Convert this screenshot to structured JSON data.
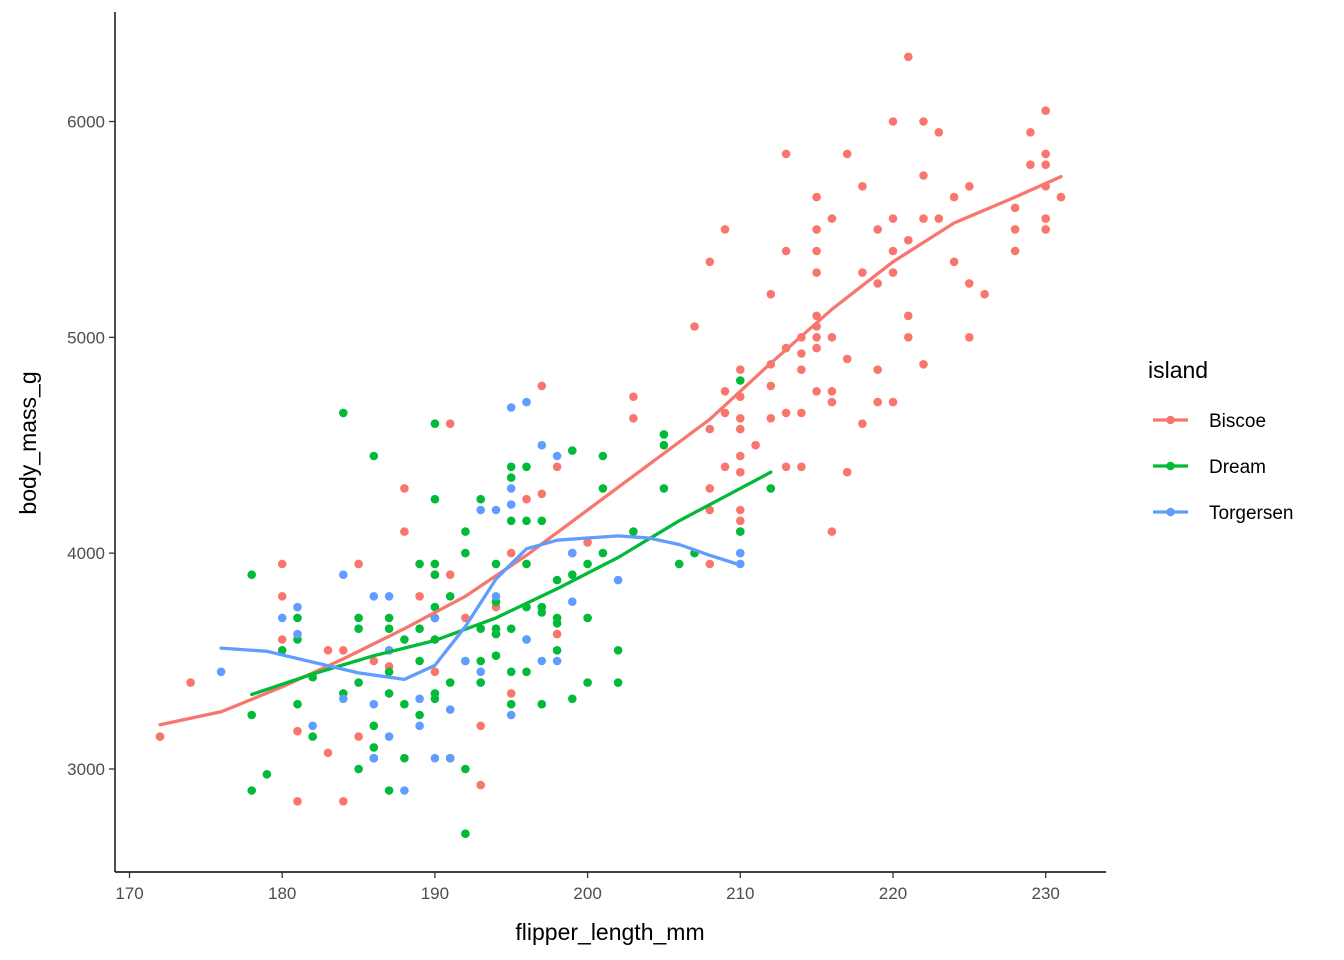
{
  "chart_data": {
    "type": "scatter",
    "xlabel": "flipper_length_mm",
    "ylabel": "body_mass_g",
    "xlim": [
      169.05,
      233.95
    ],
    "ylim": [
      2522.5,
      6507.5
    ],
    "x_ticks": [
      170,
      180,
      190,
      200,
      210,
      220,
      230
    ],
    "y_ticks": [
      3000,
      4000,
      5000,
      6000
    ],
    "grid": false,
    "legend": {
      "title": "island",
      "placement": "right"
    },
    "series": [
      {
        "name": "Biscoe",
        "color": "#F8766D",
        "points": [
          [
            172,
            3150
          ],
          [
            174,
            3400
          ],
          [
            180,
            3950
          ],
          [
            180,
            3800
          ],
          [
            180,
            3600
          ],
          [
            181,
            2850
          ],
          [
            181,
            3175
          ],
          [
            183,
            3075
          ],
          [
            183,
            3550
          ],
          [
            184,
            2850
          ],
          [
            184,
            3550
          ],
          [
            185,
            3950
          ],
          [
            185,
            3150
          ],
          [
            186,
            3500
          ],
          [
            187,
            3550
          ],
          [
            187,
            3475
          ],
          [
            188,
            4300
          ],
          [
            188,
            4100
          ],
          [
            189,
            3800
          ],
          [
            190,
            3450
          ],
          [
            190,
            3900
          ],
          [
            190,
            3600
          ],
          [
            191,
            4600
          ],
          [
            191,
            3900
          ],
          [
            192,
            3700
          ],
          [
            193,
            2925
          ],
          [
            193,
            3200
          ],
          [
            194,
            3750
          ],
          [
            195,
            3350
          ],
          [
            195,
            4000
          ],
          [
            196,
            4250
          ],
          [
            197,
            4275
          ],
          [
            197,
            4775
          ],
          [
            198,
            3625
          ],
          [
            198,
            4400
          ],
          [
            199,
            4000
          ],
          [
            200,
            4050
          ],
          [
            203,
            4625
          ],
          [
            203,
            4725
          ],
          [
            207,
            5050
          ],
          [
            208,
            3950
          ],
          [
            208,
            4200
          ],
          [
            208,
            4300
          ],
          [
            208,
            4575
          ],
          [
            208,
            5350
          ],
          [
            209,
            4750
          ],
          [
            209,
            4400
          ],
          [
            209,
            4650
          ],
          [
            209,
            5500
          ],
          [
            210,
            4850
          ],
          [
            210,
            4725
          ],
          [
            210,
            4625
          ],
          [
            210,
            4450
          ],
          [
            210,
            4375
          ],
          [
            210,
            4200
          ],
          [
            210,
            4150
          ],
          [
            210,
            4100
          ],
          [
            210,
            4575
          ],
          [
            211,
            4500
          ],
          [
            212,
            5200
          ],
          [
            212,
            4875
          ],
          [
            212,
            4625
          ],
          [
            212,
            4775
          ],
          [
            213,
            5850
          ],
          [
            213,
            5400
          ],
          [
            213,
            4950
          ],
          [
            213,
            4400
          ],
          [
            213,
            4650
          ],
          [
            214,
            5000
          ],
          [
            214,
            4400
          ],
          [
            214,
            4650
          ],
          [
            214,
            4925
          ],
          [
            214,
            4850
          ],
          [
            215,
            5650
          ],
          [
            215,
            5500
          ],
          [
            215,
            5400
          ],
          [
            215,
            5300
          ],
          [
            215,
            5100
          ],
          [
            215,
            5050
          ],
          [
            215,
            4950
          ],
          [
            215,
            4750
          ],
          [
            215,
            5000
          ],
          [
            216,
            5550
          ],
          [
            216,
            4700
          ],
          [
            216,
            4100
          ],
          [
            216,
            4750
          ],
          [
            216,
            5000
          ],
          [
            217,
            5850
          ],
          [
            217,
            4900
          ],
          [
            217,
            4375
          ],
          [
            218,
            5700
          ],
          [
            218,
            5300
          ],
          [
            218,
            4600
          ],
          [
            219,
            5500
          ],
          [
            219,
            5250
          ],
          [
            219,
            4850
          ],
          [
            219,
            4700
          ],
          [
            220,
            6000
          ],
          [
            220,
            5550
          ],
          [
            220,
            5300
          ],
          [
            220,
            4700
          ],
          [
            220,
            5400
          ],
          [
            221,
            6300
          ],
          [
            221,
            5450
          ],
          [
            221,
            5100
          ],
          [
            221,
            5000
          ],
          [
            222,
            6000
          ],
          [
            222,
            5550
          ],
          [
            222,
            4875
          ],
          [
            222,
            5750
          ],
          [
            223,
            5950
          ],
          [
            223,
            5550
          ],
          [
            224,
            5650
          ],
          [
            224,
            5350
          ],
          [
            225,
            5700
          ],
          [
            225,
            5000
          ],
          [
            225,
            5250
          ],
          [
            226,
            5200
          ],
          [
            228,
            5600
          ],
          [
            228,
            5400
          ],
          [
            229,
            5950
          ],
          [
            229,
            5800
          ],
          [
            230,
            6050
          ],
          [
            230,
            5850
          ],
          [
            230,
            5800
          ],
          [
            230,
            5700
          ],
          [
            230,
            5550
          ],
          [
            230,
            5500
          ],
          [
            231,
            5650
          ],
          [
            228,
            5500
          ]
        ],
        "smooth": [
          [
            172,
            3205
          ],
          [
            176,
            3265
          ],
          [
            180,
            3380
          ],
          [
            184,
            3510
          ],
          [
            188,
            3650
          ],
          [
            192,
            3800
          ],
          [
            196,
            3990
          ],
          [
            200,
            4200
          ],
          [
            204,
            4410
          ],
          [
            208,
            4620
          ],
          [
            212,
            4880
          ],
          [
            216,
            5130
          ],
          [
            220,
            5350
          ],
          [
            224,
            5530
          ],
          [
            228,
            5650
          ],
          [
            231,
            5745
          ]
        ]
      },
      {
        "name": "Dream",
        "color": "#00BA38",
        "points": [
          [
            178,
            3250
          ],
          [
            178,
            3900
          ],
          [
            178,
            2900
          ],
          [
            179,
            2975
          ],
          [
            180,
            3550
          ],
          [
            181,
            3700
          ],
          [
            181,
            3300
          ],
          [
            181,
            3600
          ],
          [
            182,
            3150
          ],
          [
            182,
            3425
          ],
          [
            184,
            4650
          ],
          [
            185,
            3700
          ],
          [
            185,
            3400
          ],
          [
            185,
            3650
          ],
          [
            185,
            3000
          ],
          [
            186,
            4450
          ],
          [
            186,
            3100
          ],
          [
            186,
            3050
          ],
          [
            187,
            3650
          ],
          [
            187,
            3350
          ],
          [
            187,
            3700
          ],
          [
            187,
            2900
          ],
          [
            187,
            3450
          ],
          [
            188,
            3600
          ],
          [
            188,
            3300
          ],
          [
            188,
            3050
          ],
          [
            189,
            3950
          ],
          [
            189,
            3500
          ],
          [
            189,
            3650
          ],
          [
            189,
            3250
          ],
          [
            190,
            4600
          ],
          [
            190,
            4250
          ],
          [
            190,
            3950
          ],
          [
            190,
            3900
          ],
          [
            190,
            3700
          ],
          [
            190,
            3350
          ],
          [
            190,
            3600
          ],
          [
            190,
            3325
          ],
          [
            191,
            3800
          ],
          [
            191,
            3400
          ],
          [
            191,
            3050
          ],
          [
            192,
            4100
          ],
          [
            192,
            4000
          ],
          [
            192,
            3500
          ],
          [
            192,
            3000
          ],
          [
            192,
            2700
          ],
          [
            193,
            4250
          ],
          [
            193,
            3650
          ],
          [
            193,
            3500
          ],
          [
            193,
            3400
          ],
          [
            194,
            3950
          ],
          [
            194,
            3775
          ],
          [
            194,
            3625
          ],
          [
            194,
            3525
          ],
          [
            195,
            4400
          ],
          [
            195,
            4350
          ],
          [
            195,
            4150
          ],
          [
            195,
            3650
          ],
          [
            195,
            3450
          ],
          [
            195,
            3300
          ],
          [
            196,
            4400
          ],
          [
            196,
            4150
          ],
          [
            196,
            3950
          ],
          [
            196,
            3600
          ],
          [
            196,
            3450
          ],
          [
            197,
            4150
          ],
          [
            197,
            3750
          ],
          [
            197,
            3725
          ],
          [
            197,
            3300
          ],
          [
            198,
            3875
          ],
          [
            198,
            3675
          ],
          [
            198,
            3700
          ],
          [
            199,
            4475
          ],
          [
            199,
            3900
          ],
          [
            199,
            3325
          ],
          [
            200,
            3400
          ],
          [
            200,
            3950
          ],
          [
            201,
            4450
          ],
          [
            201,
            4300
          ],
          [
            201,
            4000
          ],
          [
            202,
            3550
          ],
          [
            202,
            3400
          ],
          [
            203,
            4100
          ],
          [
            205,
            4550
          ],
          [
            205,
            4500
          ],
          [
            205,
            4300
          ],
          [
            206,
            3950
          ],
          [
            207,
            4000
          ],
          [
            210,
            4800
          ],
          [
            210,
            4100
          ],
          [
            212,
            4300
          ],
          [
            186,
            3200
          ],
          [
            184,
            3350
          ],
          [
            190,
            3750
          ],
          [
            194,
            3650
          ],
          [
            196,
            3750
          ],
          [
            198,
            3550
          ],
          [
            200,
            3700
          ]
        ],
        "smooth": [
          [
            178,
            3345
          ],
          [
            182,
            3440
          ],
          [
            186,
            3525
          ],
          [
            190,
            3595
          ],
          [
            194,
            3700
          ],
          [
            198,
            3835
          ],
          [
            202,
            3980
          ],
          [
            206,
            4150
          ],
          [
            210,
            4300
          ],
          [
            212,
            4375
          ]
        ]
      },
      {
        "name": "Torgersen",
        "color": "#619CFF",
        "points": [
          [
            176,
            3450
          ],
          [
            180,
            3700
          ],
          [
            181,
            3750
          ],
          [
            181,
            3625
          ],
          [
            182,
            3200
          ],
          [
            184,
            3900
          ],
          [
            184,
            3325
          ],
          [
            186,
            3800
          ],
          [
            186,
            3300
          ],
          [
            186,
            3050
          ],
          [
            187,
            3800
          ],
          [
            187,
            3550
          ],
          [
            187,
            3150
          ],
          [
            188,
            2900
          ],
          [
            189,
            3200
          ],
          [
            189,
            3325
          ],
          [
            190,
            3050
          ],
          [
            190,
            3700
          ],
          [
            191,
            3275
          ],
          [
            191,
            3050
          ],
          [
            193,
            3450
          ],
          [
            193,
            4200
          ],
          [
            194,
            4200
          ],
          [
            194,
            3800
          ],
          [
            195,
            4300
          ],
          [
            195,
            4675
          ],
          [
            195,
            4225
          ],
          [
            195,
            3250
          ],
          [
            196,
            4700
          ],
          [
            197,
            4500
          ],
          [
            197,
            3500
          ],
          [
            198,
            4450
          ],
          [
            198,
            3500
          ],
          [
            199,
            4000
          ],
          [
            199,
            3775
          ],
          [
            202,
            3875
          ],
          [
            210,
            4000
          ],
          [
            210,
            3950
          ],
          [
            192,
            3500
          ],
          [
            196,
            3600
          ]
        ],
        "smooth": [
          [
            176,
            3560
          ],
          [
            179,
            3545
          ],
          [
            182,
            3495
          ],
          [
            185,
            3445
          ],
          [
            188,
            3415
          ],
          [
            190,
            3480
          ],
          [
            192,
            3660
          ],
          [
            194,
            3880
          ],
          [
            196,
            4020
          ],
          [
            198,
            4060
          ],
          [
            200,
            4070
          ],
          [
            202,
            4080
          ],
          [
            204,
            4070
          ],
          [
            206,
            4040
          ],
          [
            208,
            3990
          ],
          [
            210,
            3945
          ]
        ]
      }
    ]
  }
}
